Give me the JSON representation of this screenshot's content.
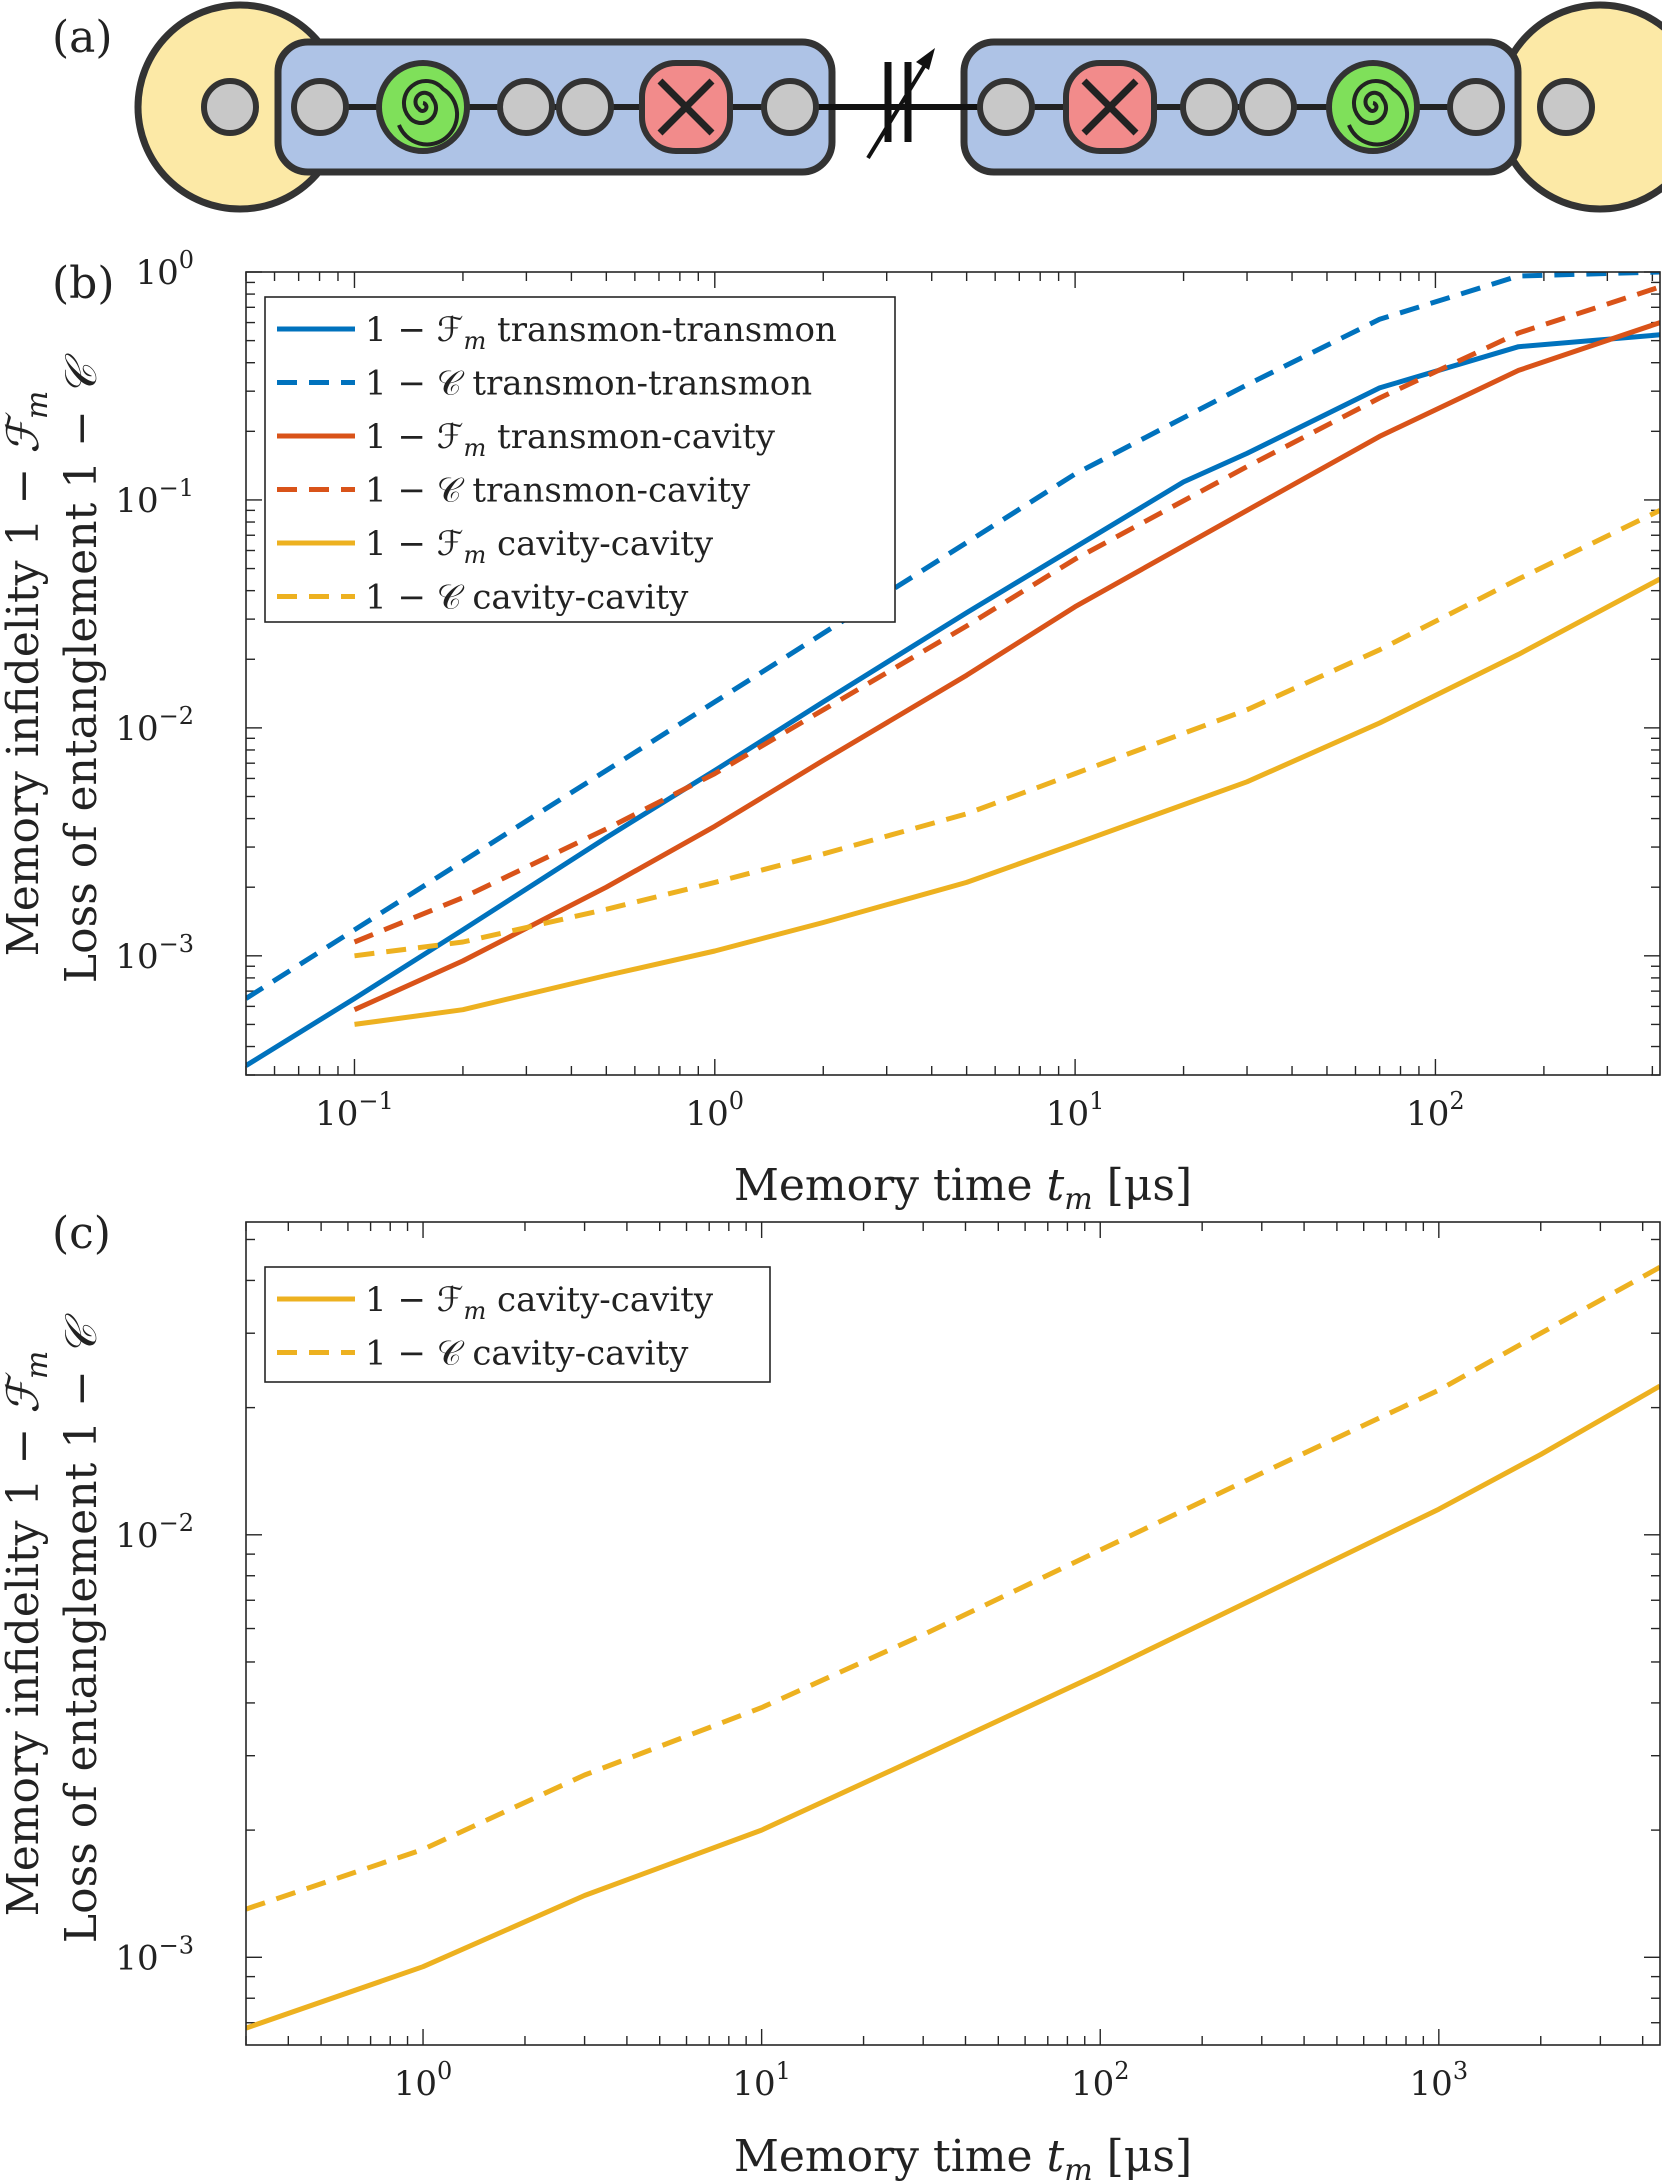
{
  "panels": {
    "a": {
      "label": "(a)"
    },
    "b": {
      "label": "(b)"
    },
    "c": {
      "label": "(c)"
    }
  },
  "colors": {
    "blue": "#0072BD",
    "red": "#D95319",
    "yellow": "#EDB120",
    "node_fill": "#C8C8C8",
    "module_fill": "#AEC3E6",
    "transmon_fill": "#F28B8B",
    "cavity_fill": "#7FE05A",
    "pad_fill": "#FCE9A6",
    "stroke": "#333333"
  },
  "chart_data": [
    {
      "id": "b",
      "type": "line",
      "title": "",
      "xlabel": "Memory time t_m [μs]",
      "ylabel_line1": "Memory infidelity 1 − F_m",
      "ylabel_line2": "Loss of entanglement 1 − C",
      "xscale": "log",
      "yscale": "log",
      "xlim": [
        0.05,
        420
      ],
      "ylim": [
        0.0003,
        1
      ],
      "xticks": [
        0.1,
        1,
        10,
        100
      ],
      "xtick_labels": [
        {
          "base": "10",
          "exp": "−1"
        },
        {
          "base": "10",
          "exp": "0"
        },
        {
          "base": "10",
          "exp": "1"
        },
        {
          "base": "10",
          "exp": "2"
        }
      ],
      "yticks": [
        0.001,
        0.01,
        0.1,
        1
      ],
      "ytick_labels": [
        {
          "base": "10",
          "exp": "−3"
        },
        {
          "base": "10",
          "exp": "−2"
        },
        {
          "base": "10",
          "exp": "−1"
        },
        {
          "base": "10",
          "exp": "0"
        }
      ],
      "legend_position": "top-left",
      "series": [
        {
          "name": "1 − F_m transmon-transmon",
          "legend": "1 − ℱ",
          "legend_sub": "m",
          "legend_tail": " transmon-transmon",
          "color": "blue",
          "dash": false,
          "x": [
            0.05,
            0.1,
            0.2,
            0.5,
            1,
            2,
            5,
            10,
            20,
            30,
            70,
            170,
            420
          ],
          "y": [
            0.00033,
            0.00065,
            0.0013,
            0.0033,
            0.0065,
            0.013,
            0.032,
            0.062,
            0.12,
            0.16,
            0.31,
            0.47,
            0.53
          ]
        },
        {
          "name": "1 − C transmon-transmon",
          "legend": "1 − 𝒞",
          "legend_sub": "",
          "legend_tail": " transmon-transmon",
          "color": "blue",
          "dash": true,
          "x": [
            0.05,
            0.1,
            0.2,
            0.5,
            1,
            2,
            5,
            10,
            30,
            70,
            170,
            420
          ],
          "y": [
            0.00065,
            0.0013,
            0.0026,
            0.0065,
            0.013,
            0.026,
            0.065,
            0.13,
            0.32,
            0.62,
            0.96,
            1.0
          ]
        },
        {
          "name": "1 − F_m transmon-cavity",
          "legend": "1 − ℱ",
          "legend_sub": "m",
          "legend_tail": " transmon-cavity",
          "color": "red",
          "dash": false,
          "x": [
            0.1,
            0.2,
            0.5,
            1,
            2,
            5,
            10,
            30,
            70,
            170,
            420
          ],
          "y": [
            0.00058,
            0.00095,
            0.002,
            0.0037,
            0.0072,
            0.017,
            0.034,
            0.09,
            0.19,
            0.37,
            0.6
          ]
        },
        {
          "name": "1 − C transmon-cavity",
          "legend": "1 − 𝒞",
          "legend_sub": "",
          "legend_tail": " transmon-cavity",
          "color": "red",
          "dash": true,
          "x": [
            0.1,
            0.2,
            0.5,
            1,
            2,
            5,
            10,
            30,
            70,
            170,
            420
          ],
          "y": [
            0.00115,
            0.0018,
            0.0036,
            0.0063,
            0.012,
            0.028,
            0.055,
            0.14,
            0.28,
            0.54,
            0.86
          ]
        },
        {
          "name": "1 − F_m cavity-cavity",
          "legend": "1 − ℱ",
          "legend_sub": "m",
          "legend_tail": " cavity-cavity",
          "color": "yellow",
          "dash": false,
          "x": [
            0.1,
            0.2,
            0.5,
            1,
            2,
            5,
            10,
            30,
            70,
            170,
            420
          ],
          "y": [
            0.0005,
            0.00058,
            0.00082,
            0.00105,
            0.0014,
            0.0021,
            0.0031,
            0.0058,
            0.0105,
            0.021,
            0.045
          ]
        },
        {
          "name": "1 − C cavity-cavity",
          "legend": "1 − 𝒞",
          "legend_sub": "",
          "legend_tail": " cavity-cavity",
          "color": "yellow",
          "dash": true,
          "x": [
            0.1,
            0.2,
            0.5,
            1,
            2,
            5,
            10,
            30,
            70,
            170,
            420
          ],
          "y": [
            0.001,
            0.00115,
            0.0016,
            0.0021,
            0.0028,
            0.0042,
            0.0063,
            0.012,
            0.022,
            0.045,
            0.09
          ]
        }
      ]
    },
    {
      "id": "c",
      "type": "line",
      "title": "",
      "xlabel": "Memory time t_m [μs]",
      "ylabel_line1": "Memory infidelity 1 − F_m",
      "ylabel_line2": "Loss of entanglement 1 − C",
      "xscale": "log",
      "yscale": "log",
      "xlim": [
        0.3,
        4500
      ],
      "ylim": [
        0.00062,
        0.055
      ],
      "xticks": [
        1,
        10,
        100,
        1000
      ],
      "xtick_labels": [
        {
          "base": "10",
          "exp": "0"
        },
        {
          "base": "10",
          "exp": "1"
        },
        {
          "base": "10",
          "exp": "2"
        },
        {
          "base": "10",
          "exp": "3"
        }
      ],
      "yticks": [
        0.001,
        0.01
      ],
      "ytick_labels": [
        {
          "base": "10",
          "exp": "−3"
        },
        {
          "base": "10",
          "exp": "−2"
        }
      ],
      "legend_position": "top-left",
      "series": [
        {
          "name": "1 − F_m cavity-cavity",
          "legend": "1 − ℱ",
          "legend_sub": "m",
          "legend_tail": " cavity-cavity",
          "color": "yellow",
          "dash": false,
          "x": [
            0.3,
            1,
            3,
            10,
            30,
            100,
            300,
            1000,
            2000,
            4500
          ],
          "y": [
            0.00068,
            0.00095,
            0.0014,
            0.002,
            0.003,
            0.0047,
            0.0072,
            0.0115,
            0.0155,
            0.0225
          ]
        },
        {
          "name": "1 − C cavity-cavity",
          "legend": "1 − 𝒞",
          "legend_sub": "",
          "legend_tail": " cavity-cavity",
          "color": "yellow",
          "dash": true,
          "x": [
            0.3,
            1,
            3,
            10,
            30,
            100,
            300,
            1000,
            2000,
            4500
          ],
          "y": [
            0.0013,
            0.0018,
            0.0027,
            0.0039,
            0.0058,
            0.0092,
            0.014,
            0.022,
            0.03,
            0.043
          ]
        }
      ]
    }
  ]
}
